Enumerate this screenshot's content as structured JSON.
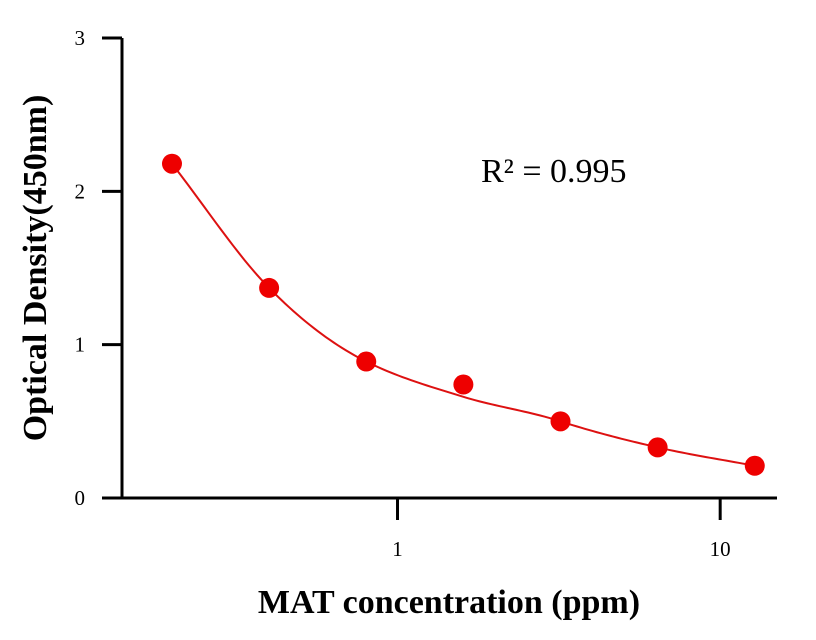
{
  "chart_data": {
    "type": "scatter",
    "title": "",
    "xlabel": "MAT concentration (ppm)",
    "ylabel": "Optical Density(450nm)",
    "x_scale": "log",
    "xlim": [
      0.14,
      15
    ],
    "ylim": [
      0,
      3
    ],
    "x_ticks": [
      {
        "value": 1,
        "label": "1"
      },
      {
        "value": 10,
        "label": "10"
      }
    ],
    "y_ticks": [
      {
        "value": 0,
        "label": "0"
      },
      {
        "value": 1,
        "label": "1"
      },
      {
        "value": 2,
        "label": "2"
      },
      {
        "value": 3,
        "label": "3"
      }
    ],
    "grid": false,
    "legend": "none",
    "point_color": "#ee0000",
    "fit_color": "#dd1111",
    "points": [
      {
        "x": 0.2,
        "y": 2.18
      },
      {
        "x": 0.4,
        "y": 1.37
      },
      {
        "x": 0.8,
        "y": 0.89
      },
      {
        "x": 1.6,
        "y": 0.74
      },
      {
        "x": 3.2,
        "y": 0.5
      },
      {
        "x": 6.4,
        "y": 0.33
      },
      {
        "x": 12.8,
        "y": 0.21
      }
    ],
    "annotation": "R² = 0.995"
  }
}
